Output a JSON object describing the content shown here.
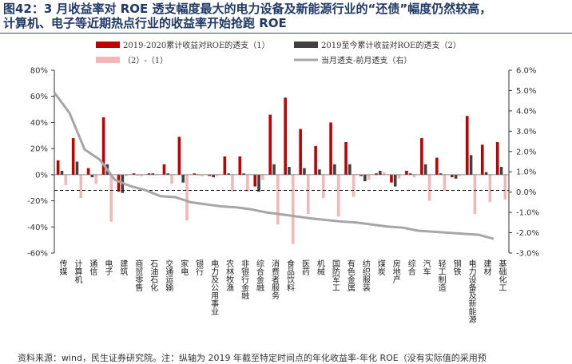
{
  "figure": {
    "title_lines": [
      "图42：3 月收益率对 ROE 透支幅度最大的电力设备及新能源行业的“还债”幅度仍然较高，",
      "计算机、电子等近期热点行业的收益率开始抢跑 ROE"
    ],
    "source": "资料来源：wind，民生证券研究院。注：纵轴为 2019 年截至特定时间点的年化收益率-年化 ROE（没有实际值的采用预"
  },
  "chart_data": {
    "type": "bar",
    "categories": [
      "传媒",
      "计算机",
      "通信",
      "电子",
      "建筑",
      "商贸零售",
      "石油石化",
      "交通运输",
      "家电",
      "银行",
      "电力及公用事业",
      "农林牧渔",
      "非银行金融",
      "综合金融",
      "消费者服务",
      "食品饮料",
      "医药",
      "机械",
      "国防军工",
      "有色金属",
      "纺织服装",
      "煤炭",
      "房地产",
      "综合",
      "汽车",
      "轻工制造",
      "钢铁",
      "电力设备及新能源",
      "建材",
      "基础化工"
    ],
    "series": [
      {
        "name": "2019-2020累计收益对ROE的透支（1）",
        "axis": "left",
        "color": "#c00000",
        "values": [
          11,
          28,
          5,
          44,
          -13,
          1,
          1,
          8,
          29,
          1,
          -1,
          14,
          14,
          -9,
          46,
          59,
          35,
          22,
          40,
          25,
          -1,
          1,
          -6,
          3,
          28,
          13,
          -2,
          45,
          23,
          25
        ]
      },
      {
        "name": "2019至今累计收益对ROE的透支（2）",
        "axis": "left",
        "color": "#404040",
        "values": [
          3,
          10,
          -2,
          8,
          -14,
          0,
          1,
          1,
          -6,
          0,
          -2,
          1,
          1,
          -13,
          8,
          6,
          5,
          4,
          8,
          8,
          -5,
          3,
          -9,
          1,
          8,
          1,
          -3,
          15,
          2,
          6
        ]
      },
      {
        "name": "（2）-（1）",
        "axis": "left",
        "color": "#f2b8b8",
        "values": [
          -8,
          -18,
          -7,
          -36,
          -1,
          -1,
          0,
          -7,
          -35,
          -1,
          -1,
          -13,
          -13,
          -4,
          -38,
          -53,
          -30,
          -18,
          -32,
          -17,
          -4,
          2,
          -3,
          -2,
          -20,
          -12,
          -1,
          -30,
          -21,
          -19
        ]
      },
      {
        "name": "当月透支-前月透支（右）",
        "axis": "right",
        "type": "line",
        "color": "#a6a6a6",
        "values": [
          4.9,
          3.9,
          2.1,
          1.6,
          0.6,
          0.3,
          0.1,
          -0.2,
          -0.25,
          -0.5,
          -0.6,
          -0.7,
          -0.75,
          -0.85,
          -1.0,
          -1.1,
          -1.2,
          -1.3,
          -1.38,
          -1.45,
          -1.5,
          -1.6,
          -1.7,
          -1.75,
          -1.9,
          -1.95,
          -2.0,
          -2.05,
          -2.1,
          -2.3
        ]
      }
    ],
    "reference_line": {
      "axis": "left",
      "value": -12,
      "style": "dashed"
    },
    "ylim_left": [
      -60,
      80
    ],
    "yticks_left": [
      "80%",
      "60%",
      "40%",
      "20%",
      "0%",
      "-20%",
      "-40%",
      "-60%"
    ],
    "ylim_right": [
      -3,
      6
    ],
    "yticks_right": [
      "6.0%",
      "5.0%",
      "4.0%",
      "3.0%",
      "2.0%",
      "1.0%",
      "0.0%",
      "-1.0%",
      "-2.0%",
      "-3.0%"
    ],
    "legend_position": "top",
    "grid": false
  }
}
